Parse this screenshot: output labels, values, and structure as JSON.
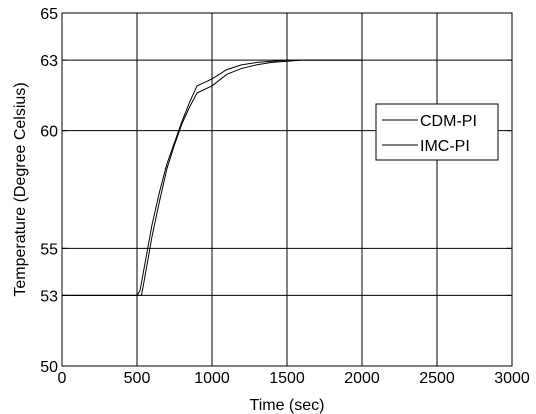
{
  "chart_data": {
    "type": "line",
    "xlabel": "Time (sec)",
    "ylabel": "Temperature (Degree Celsius)",
    "xlim": [
      0,
      3000
    ],
    "ylim": [
      50,
      65
    ],
    "xticks": [
      0,
      500,
      1000,
      1500,
      2000,
      2500,
      3000
    ],
    "yticks": [
      50,
      53,
      55,
      60,
      63,
      65
    ],
    "grid": true,
    "legend_position": "right",
    "series": [
      {
        "name": "CDM-PI",
        "x": [
          0,
          500,
          520,
          560,
          600,
          650,
          700,
          750,
          800,
          850,
          900,
          1000,
          1100,
          1200,
          1300,
          1400,
          1500,
          1600,
          1800,
          2000
        ],
        "y": [
          53,
          53,
          53.2,
          54.6,
          56.0,
          57.4,
          58.6,
          59.5,
          60.4,
          61.2,
          61.9,
          62.2,
          62.6,
          62.8,
          62.9,
          62.95,
          63.0,
          63.0,
          63.0,
          63.0
        ]
      },
      {
        "name": "IMC-PI",
        "x": [
          0,
          500,
          530,
          550,
          600,
          650,
          700,
          750,
          800,
          850,
          900,
          1000,
          1100,
          1200,
          1300,
          1400,
          1500,
          1600,
          1800,
          2000
        ],
        "y": [
          53,
          53,
          53.0,
          53.7,
          55.5,
          57.0,
          58.4,
          59.4,
          60.3,
          61.0,
          61.6,
          61.9,
          62.4,
          62.65,
          62.8,
          62.9,
          62.95,
          63.0,
          63.0,
          63.0
        ]
      }
    ]
  }
}
